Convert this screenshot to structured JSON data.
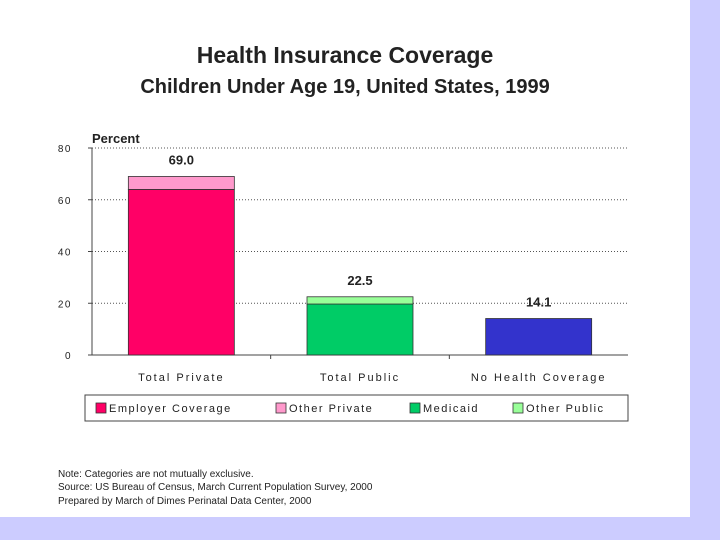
{
  "title": "Health Insurance Coverage",
  "subtitle": "Children Under Age 19, United States, 1999",
  "frame_color": "#ccccff",
  "chart_data": {
    "type": "bar",
    "stacked": true,
    "ylabel": "Percent",
    "ylim": [
      0,
      80
    ],
    "yticks": [
      "0",
      "20",
      "40",
      "60",
      "80"
    ],
    "categories": [
      "Total Private",
      "Total Public",
      "No Health Coverage"
    ],
    "totals": [
      "69.0",
      "22.5",
      "14.1"
    ],
    "series": [
      {
        "name": "Employer Coverage",
        "color": "#ff0066",
        "values": [
          64.0,
          null,
          null
        ]
      },
      {
        "name": "Other Private",
        "color": "#ff99cc",
        "values": [
          5.0,
          null,
          null
        ]
      },
      {
        "name": "Medicaid",
        "color": "#00cc66",
        "values": [
          null,
          19.7,
          null
        ]
      },
      {
        "name": "Other Public",
        "color": "#99ff99",
        "values": [
          null,
          2.8,
          null
        ]
      },
      {
        "name": "No Health Coverage",
        "color": "#3333cc",
        "values": [
          null,
          null,
          14.1
        ],
        "legend": false
      }
    ],
    "gridlines": "dotted"
  },
  "notes": [
    "Note: Categories are not mutually exclusive.",
    "Source: US Bureau of Census, March Current Population Survey, 2000",
    "Prepared by March of Dimes Perinatal Data Center, 2000"
  ]
}
